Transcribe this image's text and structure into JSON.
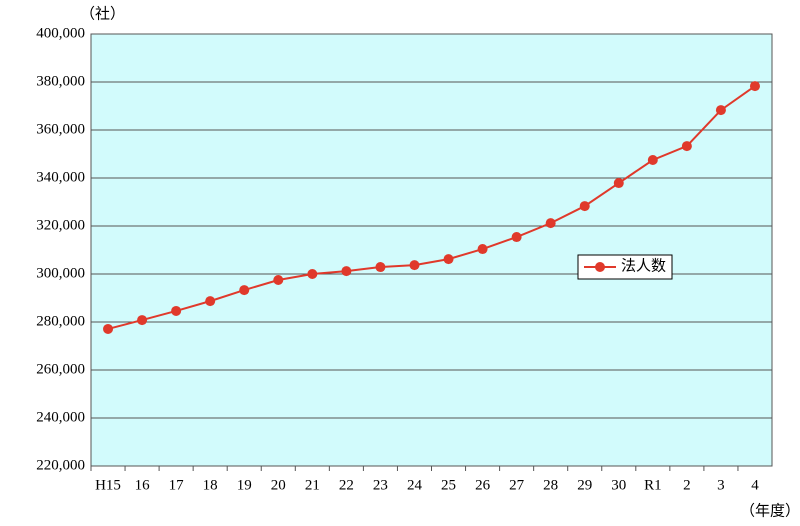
{
  "chart_data": {
    "type": "line",
    "y_unit": "（社）",
    "x_unit": "（年度）",
    "categories": [
      "H15",
      "16",
      "17",
      "18",
      "19",
      "20",
      "21",
      "22",
      "23",
      "24",
      "25",
      "26",
      "27",
      "28",
      "29",
      "30",
      "R1",
      "2",
      "3",
      "4"
    ],
    "series": [
      {
        "name": "法人数",
        "color": "#e0392b",
        "values": [
          277100,
          280800,
          284600,
          288700,
          293300,
          297500,
          300000,
          301200,
          302900,
          303700,
          306200,
          310400,
          315400,
          321200,
          328300,
          337900,
          347500,
          353300,
          368300,
          378300
        ]
      }
    ],
    "ylim": [
      220000,
      400000
    ],
    "yticks": [
      {
        "value": 220000,
        "label": "220,000"
      },
      {
        "value": 240000,
        "label": "240,000"
      },
      {
        "value": 260000,
        "label": "260,000"
      },
      {
        "value": 280000,
        "label": "280,000"
      },
      {
        "value": 300000,
        "label": "300,000"
      },
      {
        "value": 320000,
        "label": "320,000"
      },
      {
        "value": 340000,
        "label": "340,000"
      },
      {
        "value": 360000,
        "label": "360,000"
      },
      {
        "value": 380000,
        "label": "380,000"
      },
      {
        "value": 400000,
        "label": "400,000"
      }
    ],
    "grid": true,
    "legend": "center-right",
    "plot_background": "#d2fbfc"
  }
}
